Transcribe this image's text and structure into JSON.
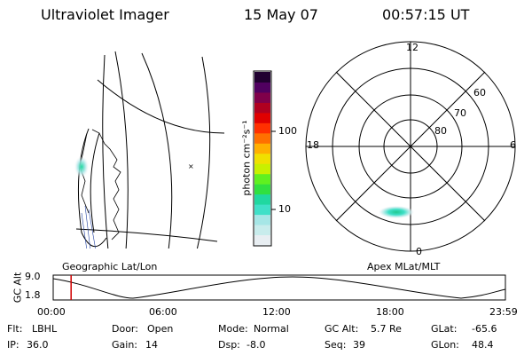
{
  "header": {
    "title": "Ultraviolet Imager",
    "date": "15 May 07",
    "time": "00:57:15 UT"
  },
  "left_panel": {
    "label": "Geographic Lat/Lon"
  },
  "colorbar": {
    "unit_label": "photon cm⁻²s⁻¹",
    "tick_high": "100",
    "tick_low": "10",
    "colors": [
      "#e8eef2",
      "#c8ecec",
      "#a6e6e6",
      "#40e0c8",
      "#20d8a0",
      "#30e040",
      "#60f020",
      "#c8f000",
      "#f0e000",
      "#ffb000",
      "#ff7000",
      "#ff3000",
      "#e00000",
      "#b00020",
      "#80004a",
      "#500060",
      "#200030"
    ]
  },
  "polar_panel": {
    "label": "Apex MLat/MLT",
    "mlt_labels": {
      "top": "12",
      "bottom": "0",
      "left": "18",
      "right": "6"
    },
    "lat_labels": [
      "60",
      "70",
      "80"
    ]
  },
  "altitude_strip": {
    "y_title": "GC Alt",
    "y_ticks": [
      "9.0",
      "1.8"
    ],
    "x_ticks": [
      "00:00",
      "06:00",
      "12:00",
      "18:00",
      "23:59"
    ],
    "marker_hours": 0.95
  },
  "footer": {
    "row1": [
      {
        "label": "Flt:",
        "value": "LBHL"
      },
      {
        "label": "Door:",
        "value": "Open"
      },
      {
        "label": "Mode:",
        "value": "Normal"
      },
      {
        "label": "GC Alt:",
        "value": "5.7 Re"
      },
      {
        "label": "GLat:",
        "value": "-65.6"
      }
    ],
    "row2": [
      {
        "label": "IP:",
        "value": "36.0"
      },
      {
        "label": "Gain:",
        "value": "14"
      },
      {
        "label": "Dsp:",
        "value": "-8.0"
      },
      {
        "label": "Seq:",
        "value": "39"
      },
      {
        "label": "GLon:",
        "value": "48.4"
      }
    ]
  }
}
